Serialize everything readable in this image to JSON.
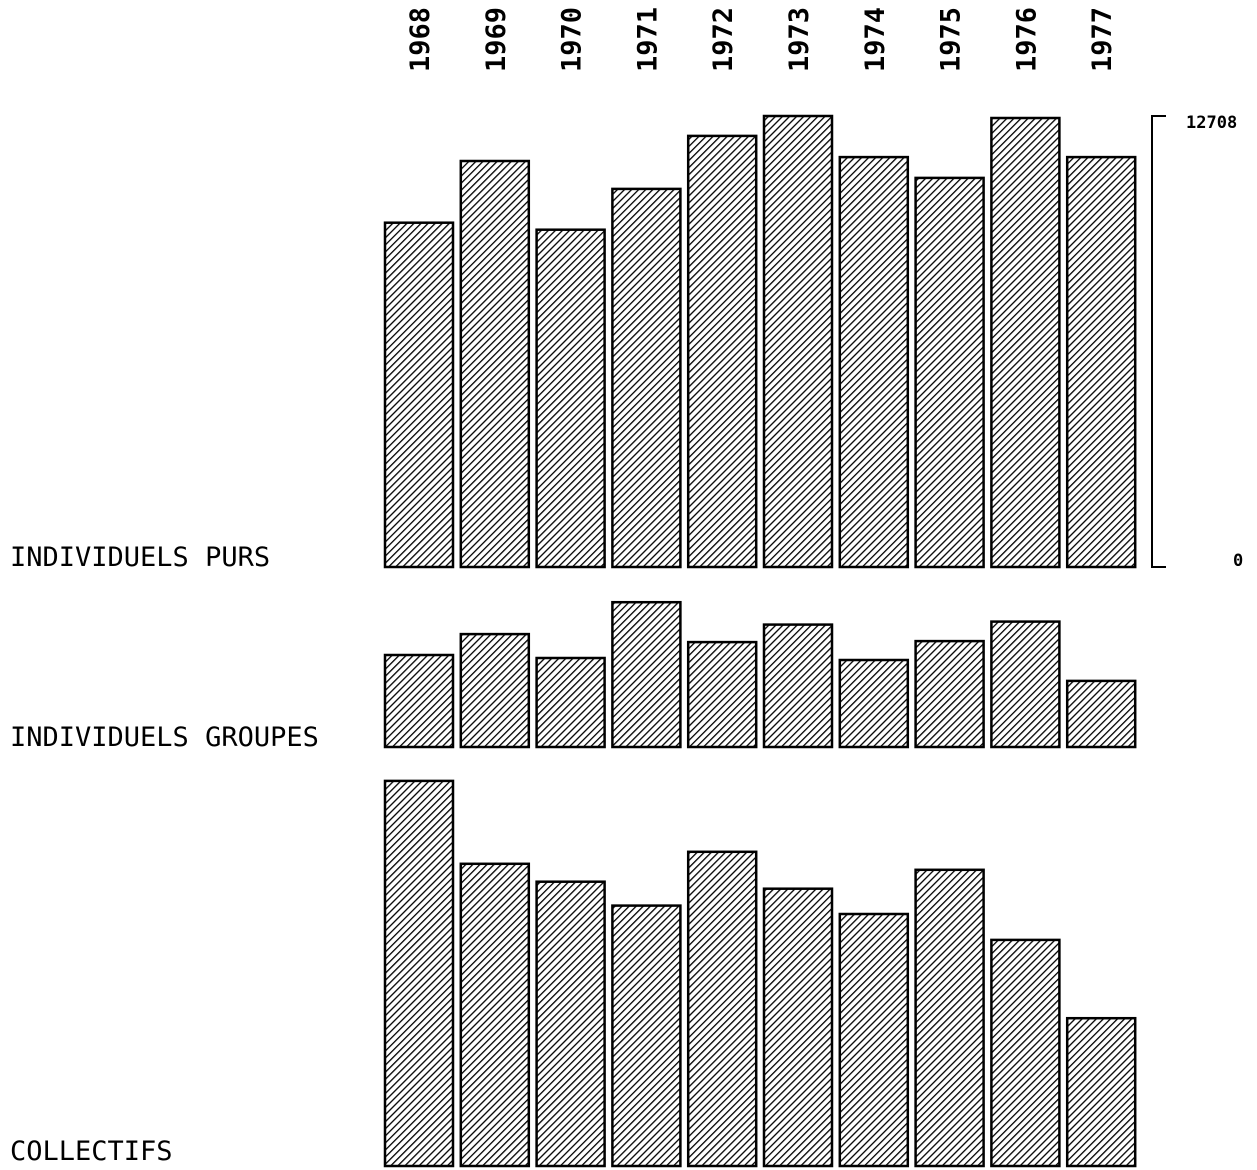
{
  "chart_data": {
    "type": "bar",
    "title": "",
    "categories": [
      "1968",
      "1969",
      "1970",
      "1971",
      "1972",
      "1973",
      "1974",
      "1975",
      "1976",
      "1977"
    ],
    "series": [
      {
        "name": "INDIVIDUELS PURS",
        "values": [
          9701,
          11439,
          9504,
          10655,
          12147,
          12708,
          11551,
          10964,
          12652,
          11551
        ]
      },
      {
        "name": "INDIVIDUELS GROUPES",
        "values": [
          2592,
          3182,
          2508,
          4080,
          2957,
          3450,
          2452,
          2985,
          3534,
          1863
        ]
      },
      {
        "name": "COLLECTIFS",
        "values": [
          10852,
          8515,
          8010,
          7337,
          8852,
          7814,
          7101,
          8347,
          6372,
          4166
        ]
      }
    ],
    "scale": {
      "max_label": "12708",
      "min_label": "0",
      "ylim": [
        0,
        12708
      ]
    },
    "colors": {
      "bar_stroke": "#000000",
      "hatch": "#000000",
      "background": "#ffffff"
    }
  }
}
